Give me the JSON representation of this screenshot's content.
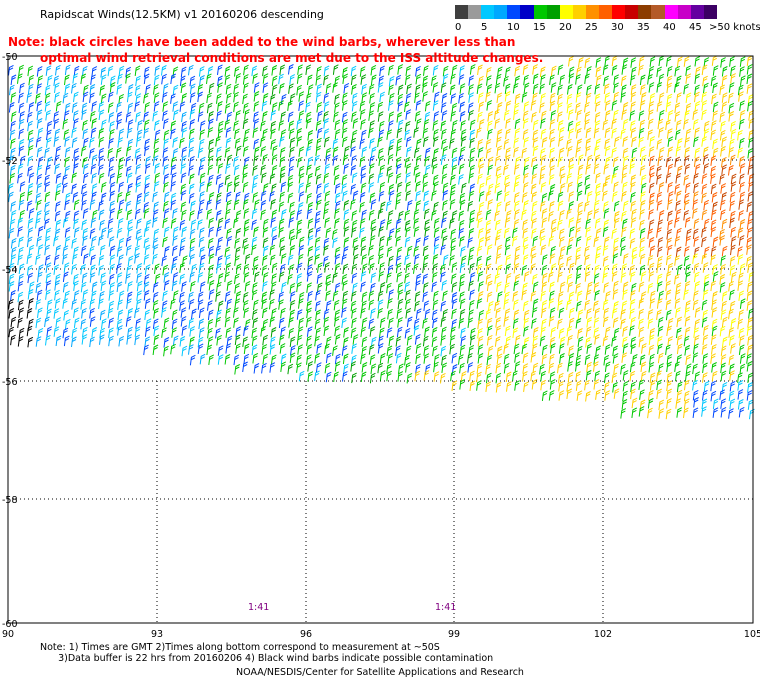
{
  "title": "Rapidscat Winds(12.5KM) v1 20160206 descending",
  "red_note": {
    "line1": "Note: black circles have been added to the wind barbs, wherever less than",
    "line2": "optimal wind retrieval conditions are met due to the ISS altitude changes."
  },
  "legend": {
    "colors": [
      "#3f3f3f",
      "#9a9a9a",
      "#00c8ff",
      "#00a8ff",
      "#0048ff",
      "#0000c8",
      "#00c800",
      "#00a000",
      "#ffff00",
      "#ffd000",
      "#ff9000",
      "#ff6000",
      "#ff0000",
      "#c80000",
      "#8c3c00",
      "#b45a28",
      "#ff00ff",
      "#c800c8",
      "#6400a0",
      "#3c0064"
    ],
    "labels": [
      "0",
      "5",
      "10",
      "15",
      "20",
      "25",
      "30",
      "35",
      "40",
      "45",
      ">50 knots"
    ]
  },
  "axes": {
    "y_ticks": [
      "-50",
      "-52",
      "-54",
      "-56",
      "-58",
      "-60"
    ],
    "x_ticks": [
      "90",
      "93",
      "96",
      "99",
      "102",
      "105"
    ]
  },
  "time_labels": [
    "1:41",
    "1:41"
  ],
  "footer": {
    "line1": "Note: 1) Times are GMT 2)Times along bottom correspond to measurement at ~50S",
    "line2": "      3)Data buffer is 22 hrs from 20160206 4) Black wind barbs indicate possible contamination",
    "credit": "NOAA/NESDIS/Center for Satellite Applications and Research"
  }
}
